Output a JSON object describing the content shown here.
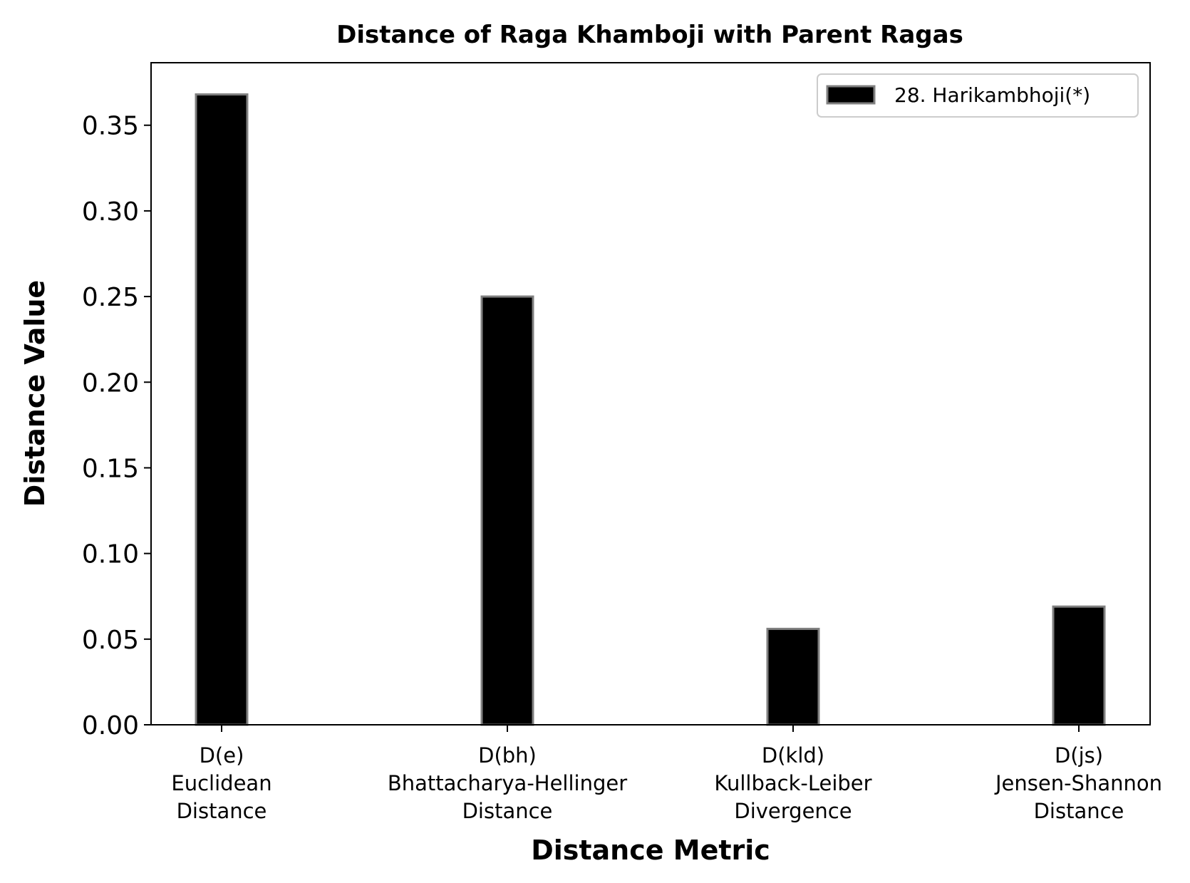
{
  "chart_data": {
    "type": "bar",
    "title": "Distance of Raga Khamboji with Parent Ragas",
    "xlabel": "Distance Metric",
    "ylabel": "Distance Value",
    "categories": [
      [
        "D(e)",
        "Euclidean",
        "Distance"
      ],
      [
        "D(bh)",
        "Bhattacharya-Hellinger",
        "Distance"
      ],
      [
        "D(kld)",
        "Kullback-Leiber",
        "Divergence"
      ],
      [
        "D(js)",
        "Jensen-Shannon",
        "Distance"
      ]
    ],
    "series": [
      {
        "name": "28. Harikambhoji(*)",
        "values": [
          0.368,
          0.25,
          0.056,
          0.069
        ],
        "color": "#000000",
        "edge_color": "#808080"
      }
    ],
    "ylim": [
      0,
      0.3865
    ],
    "yticks": [
      "0.00",
      "0.05",
      "0.10",
      "0.15",
      "0.20",
      "0.25",
      "0.30",
      "0.35"
    ],
    "grid": false,
    "legend_position": "top-right"
  }
}
